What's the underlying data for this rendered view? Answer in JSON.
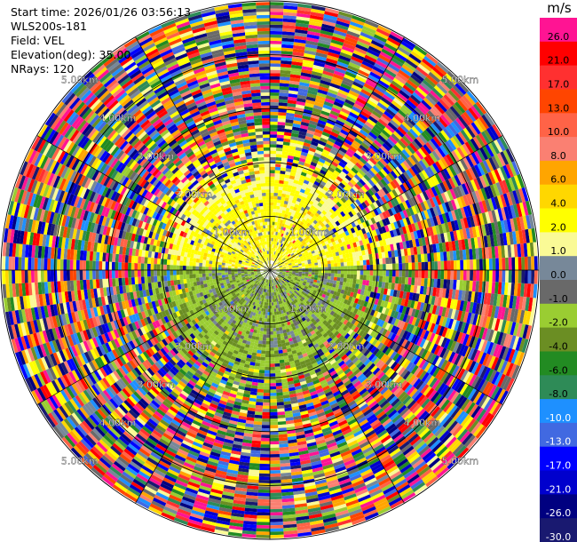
{
  "header": {
    "start_time": "Start time: 2026/01/26 03:56:13",
    "instrument": "WLS200s-181",
    "field": "Field: VEL",
    "elevation": "Elevation(deg): 35.00",
    "nrays": "NRays: 120"
  },
  "colorbar": {
    "unit": "m/s",
    "bins": [
      {
        "label": "26.0",
        "color": "#ff1493"
      },
      {
        "label": "21.0",
        "color": "#ff0000"
      },
      {
        "label": "17.0",
        "color": "#ff3030"
      },
      {
        "label": "13.0",
        "color": "#ff4500"
      },
      {
        "label": "10.0",
        "color": "#ff6347"
      },
      {
        "label": "8.0",
        "color": "#fa8072"
      },
      {
        "label": "6.0",
        "color": "#ffa500"
      },
      {
        "label": "4.0",
        "color": "#ffd700"
      },
      {
        "label": "2.0",
        "color": "#ffff00"
      },
      {
        "label": "1.0",
        "color": "#fafa96"
      },
      {
        "label": "0.0",
        "color": "#778899"
      },
      {
        "label": "-1.0",
        "color": "#696969"
      },
      {
        "label": "-2.0",
        "color": "#9acd32"
      },
      {
        "label": "-4.0",
        "color": "#6b8e23"
      },
      {
        "label": "-6.0",
        "color": "#228b22"
      },
      {
        "label": "-8.0",
        "color": "#2e8b57"
      },
      {
        "label": "-10.0",
        "color": "#1e90ff"
      },
      {
        "label": "-13.0",
        "color": "#4169e1"
      },
      {
        "label": "-17.0",
        "color": "#0000ff"
      },
      {
        "label": "-21.0",
        "color": "#0000cd"
      },
      {
        "label": "-26.0",
        "color": "#000080"
      },
      {
        "label": "-30.0",
        "color": "#191970"
      }
    ]
  },
  "chart_data": {
    "type": "heatmap",
    "projection": "polar-ppi",
    "field": "VEL",
    "unit": "m/s",
    "nrays": 120,
    "elevation_deg": 35.0,
    "max_range_km": 5.0,
    "range_ring_labels_km": [
      "1.00km",
      "2.00km",
      "3.00km",
      "4.00km",
      "5.00km"
    ],
    "ring_label_positions": [
      "upper-left",
      "upper-right",
      "lower-left",
      "lower-right"
    ],
    "spokes_deg": [
      0,
      30,
      60,
      90,
      120,
      150,
      180,
      210,
      240,
      270,
      300,
      330
    ],
    "pattern": {
      "near_field": "positive (yellow) to the north, negative (green/gray) to the south, within about 1.5km",
      "far_field": "noisy, mixed colors beyond about 2.5km"
    }
  }
}
